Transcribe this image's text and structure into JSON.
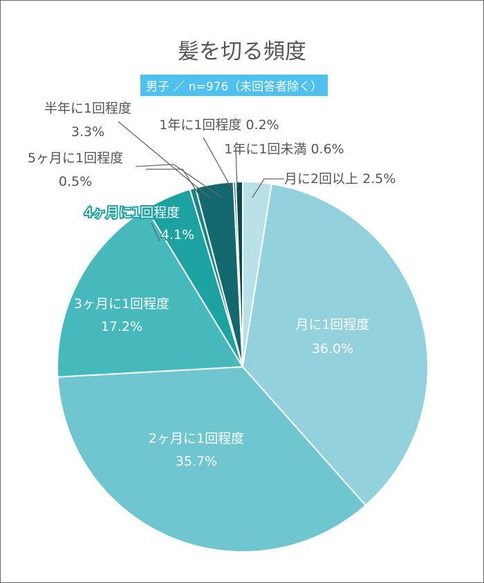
{
  "chart_data": {
    "type": "pie",
    "title": "髪を切る頻度",
    "subtitle": "男子 ／ n=976（未回答者除く）",
    "start": "top",
    "direction": "clockwise",
    "slices": [
      {
        "name": "月に2回以上",
        "value": 2.5,
        "label": "2.5%",
        "color": "#b9e0e6"
      },
      {
        "name": "月に1回程度",
        "value": 36.0,
        "label": "36.0%",
        "color": "#93d2dc"
      },
      {
        "name": "2ヶ月に1回程度",
        "value": 35.7,
        "label": "35.7%",
        "color": "#6fc6d0"
      },
      {
        "name": "3ヶ月に1回程度",
        "value": 17.2,
        "label": "17.2%",
        "color": "#45b9bb"
      },
      {
        "name": "4ヶ月に1回程度",
        "value": 4.1,
        "label": "4.1%",
        "color": "#1ca3a1"
      },
      {
        "name": "5ヶ月に1回程度",
        "value": 0.5,
        "label": "0.5%",
        "color": "#178886"
      },
      {
        "name": "半年に1回程度",
        "value": 3.3,
        "label": "3.3%",
        "color": "#13686e"
      },
      {
        "name": "1年に1回程度",
        "value": 0.2,
        "label": "0.2%",
        "color": "#105a60"
      },
      {
        "name": "1年に1回未満",
        "value": 0.6,
        "label": "0.6%",
        "color": "#0d4a50"
      }
    ]
  }
}
